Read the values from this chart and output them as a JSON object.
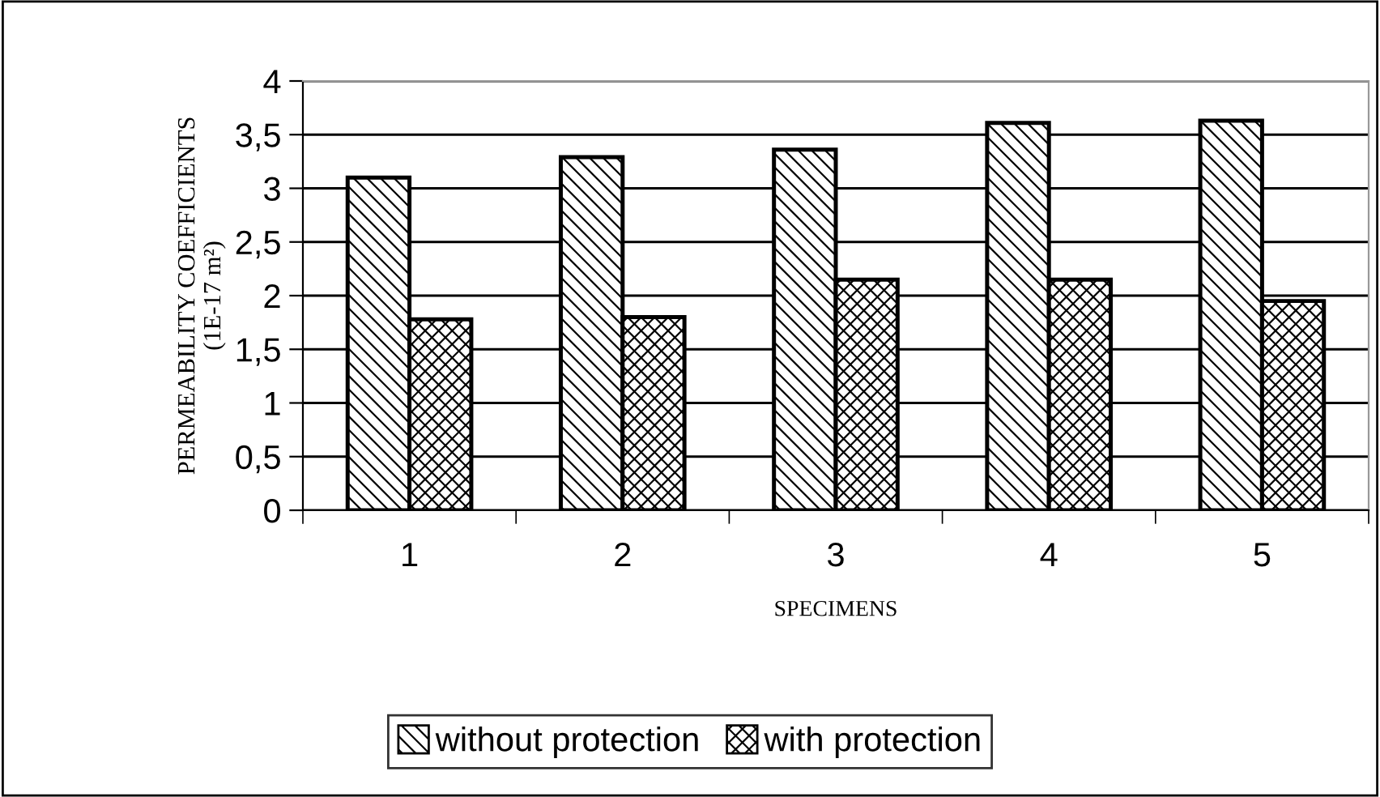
{
  "chart_data": {
    "type": "bar",
    "xlabel": "SPECIMENS",
    "ylabel": "PERMEABILITY COEFFICIENTS\n(1E-17 m²)",
    "categories": [
      "1",
      "2",
      "3",
      "4",
      "5"
    ],
    "series": [
      {
        "name": "without protection",
        "color": "#000000",
        "values": [
          3.1,
          3.29,
          3.36,
          3.61,
          3.63
        ]
      },
      {
        "name": "with protection",
        "color": "#000000",
        "values": [
          1.78,
          1.8,
          2.15,
          2.15,
          1.95
        ]
      }
    ],
    "ylim": [
      0,
      4
    ],
    "yticks": [
      0,
      {
        "value": 0.5,
        "label": "0,5"
      },
      1,
      {
        "value": 1.5,
        "label": "1,5"
      },
      2,
      {
        "value": 2.5,
        "label": "2,5"
      },
      3,
      {
        "value": 3.5,
        "label": "3,5"
      },
      4
    ],
    "grid": "y",
    "legend": "bottom"
  }
}
